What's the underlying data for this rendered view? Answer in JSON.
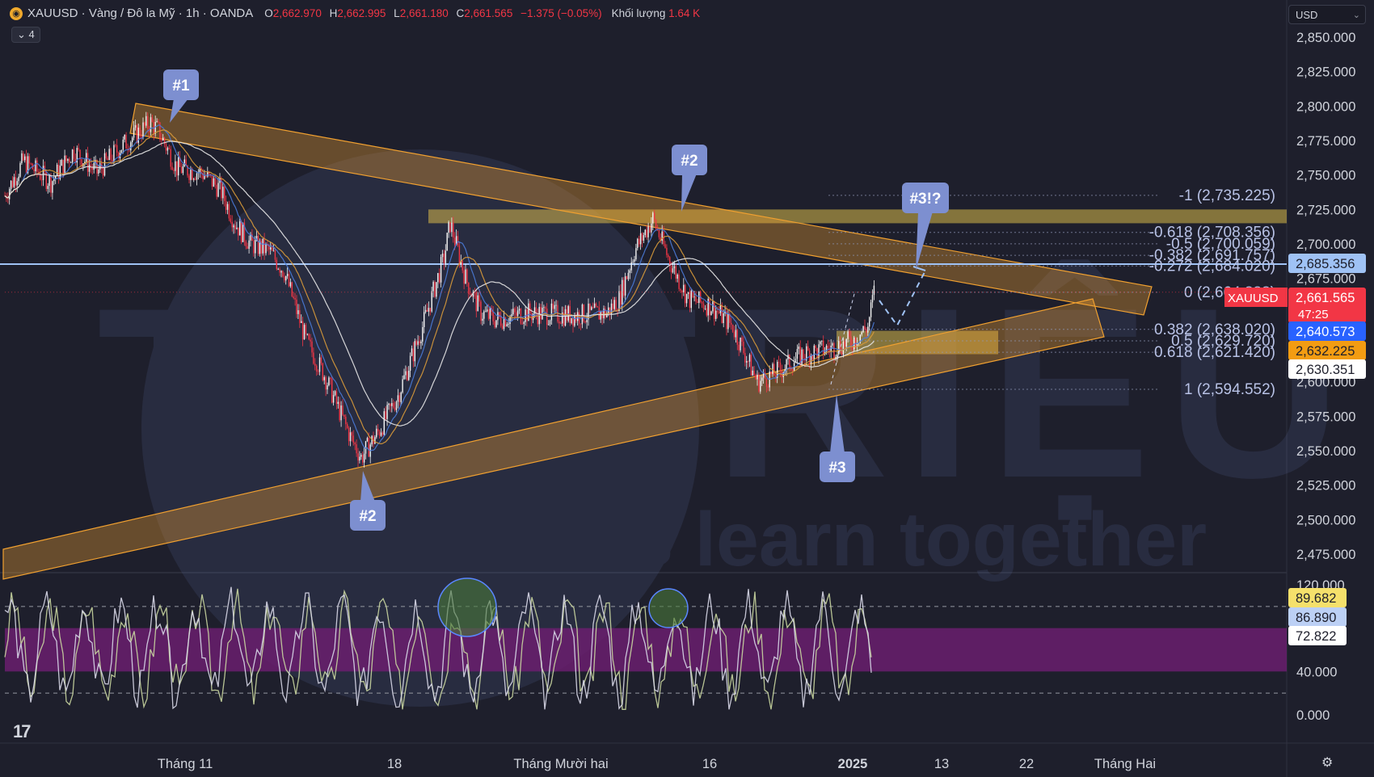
{
  "header": {
    "symbol_icon": "gold-coin-icon",
    "title": "XAUUSD · Vàng / Đô la Mỹ · 1h · OANDA",
    "ohlc": [
      {
        "label": "O",
        "value": "2,662.970"
      },
      {
        "label": "H",
        "value": "2,662.995"
      },
      {
        "label": "L",
        "value": "2,661.180"
      },
      {
        "label": "C",
        "value": "2,661.565"
      },
      {
        "label": "",
        "value": "−1.375 (−0.05%)"
      }
    ],
    "volume_label": "Khối lượng",
    "volume_value": "1.64 K",
    "collapse_label": "4",
    "currency": "USD"
  },
  "colors": {
    "background": "#1e1f2c",
    "candle_up": "#f5f5f5",
    "candle_down": "#f23645",
    "channel": "#f0a030",
    "zone": "#d9b94a",
    "horizontal_line": "#9fc2f5",
    "label_bubble": "#7d8fd0",
    "rsi_band": "#6a1f6e"
  },
  "chart_data": [
    {
      "type": "candlestick",
      "instrument": "XAUUSD",
      "timeframe": "1h",
      "ylim": [
        2465,
        2855
      ],
      "y_ticks": [
        2850,
        2825,
        2800,
        2775,
        2750,
        2725,
        2700,
        2675,
        2650,
        2625,
        2600,
        2575,
        2550,
        2525,
        2500,
        2475
      ],
      "y_tick_labels": [
        "2,850.000",
        "2,825.000",
        "2,800.000",
        "2,775.000",
        "2,750.000",
        "2,725.000",
        "2,700.000",
        "2,675.000",
        "2,650.000",
        "2,625.000",
        "2,600.000",
        "2,575.000",
        "2,550.000",
        "2,525.000",
        "2,500.000",
        "2,475.000"
      ],
      "x_ticks": [
        "Tháng 11",
        "18",
        "Tháng Mười hai",
        "16",
        "2025",
        "13",
        "22",
        "Tháng Hai"
      ],
      "price_path": [
        [
          0,
          2735
        ],
        [
          12,
          2760
        ],
        [
          30,
          2745
        ],
        [
          45,
          2768
        ],
        [
          60,
          2752
        ],
        [
          75,
          2770
        ],
        [
          95,
          2788
        ],
        [
          100,
          2782
        ],
        [
          112,
          2755
        ],
        [
          128,
          2752
        ],
        [
          140,
          2740
        ],
        [
          150,
          2715
        ],
        [
          160,
          2700
        ],
        [
          172,
          2695
        ],
        [
          182,
          2680
        ],
        [
          196,
          2630
        ],
        [
          208,
          2605
        ],
        [
          225,
          2560
        ],
        [
          232,
          2545
        ],
        [
          244,
          2565
        ],
        [
          256,
          2590
        ],
        [
          272,
          2640
        ],
        [
          286,
          2690
        ],
        [
          290,
          2715
        ],
        [
          300,
          2675
        ],
        [
          310,
          2650
        ],
        [
          320,
          2645
        ],
        [
          340,
          2650
        ],
        [
          370,
          2648
        ],
        [
          392,
          2650
        ],
        [
          400,
          2660
        ],
        [
          410,
          2695
        ],
        [
          422,
          2718
        ],
        [
          432,
          2690
        ],
        [
          445,
          2660
        ],
        [
          460,
          2655
        ],
        [
          474,
          2640
        ],
        [
          490,
          2600
        ],
        [
          500,
          2605
        ],
        [
          520,
          2620
        ],
        [
          540,
          2625
        ],
        [
          552,
          2630
        ],
        [
          562,
          2640
        ],
        [
          566,
          2665
        ]
      ],
      "moving_averages": [
        "blue",
        "orange",
        "white"
      ],
      "current_price": "2,661.565",
      "countdown": "47:25",
      "price_tags": [
        {
          "value": 2685.356,
          "text": "2,685.356",
          "bg": "#9fc2f5",
          "fg": "#1e1f2c"
        },
        {
          "value": 2661.565,
          "text": "2,661.565",
          "bg": "#f23645",
          "fg": "#ffffff"
        },
        {
          "value": 2640.573,
          "text": "2,640.573",
          "bg": "#2962ff",
          "fg": "#ffffff"
        },
        {
          "value": 2632.225,
          "text": "2,632.225",
          "bg": "#f39c12",
          "fg": "#1e1f2c"
        },
        {
          "value": 2630.351,
          "text": "2,630.351",
          "bg": "#ffffff",
          "fg": "#1e1f2c"
        }
      ],
      "current_price_tag_label": "XAUUSD",
      "horizontal_line_value": 2685.356,
      "fibonacci": [
        {
          "text": "-1 (2,735.225)",
          "value": 2735.225
        },
        {
          "text": "-0.618 (2,708.356)",
          "value": 2708.356
        },
        {
          "text": "-0.5 (2,700.059)",
          "value": 2700.059
        },
        {
          "text": "-0.382 (2,691.757)",
          "value": 2691.757
        },
        {
          "text": "-0.272 (2,684.020)",
          "value": 2684.02
        },
        {
          "text": "0 (2,664.888)",
          "value": 2664.888
        },
        {
          "text": "0.382 (2,638.020)",
          "value": 2638.02
        },
        {
          "text": "0.5 (2,629.720)",
          "value": 2629.72
        },
        {
          "text": "0.618 (2,621.420)",
          "value": 2621.42
        },
        {
          "text": "1 (2,594.552)",
          "value": 2594.552
        }
      ],
      "zones": [
        {
          "from": 2715,
          "to": 2725
        },
        {
          "from": 2620,
          "to": 2637
        }
      ],
      "callouts": [
        "#1",
        "#2",
        "#2",
        "#3",
        "#3!?"
      ],
      "watermark": [
        "TÔ TRIỆU",
        "let's learn together"
      ]
    },
    {
      "type": "line",
      "name": "stochastic-rsi",
      "ylim": [
        -10,
        130
      ],
      "y_ticks": [
        120,
        40,
        0
      ],
      "y_tick_labels": [
        "120.000",
        "40.000",
        "0.000"
      ],
      "band": [
        40,
        80
      ],
      "dashed_levels": [
        100,
        20
      ],
      "value_tags": [
        {
          "text": "89.682",
          "bg": "#f5e06b",
          "fg": "#1e1f2c"
        },
        {
          "text": "86.890",
          "bg": "#bcd0f5",
          "fg": "#1e1f2c"
        },
        {
          "text": "72.822",
          "bg": "#ffffff",
          "fg": "#1e1f2c"
        }
      ]
    }
  ]
}
